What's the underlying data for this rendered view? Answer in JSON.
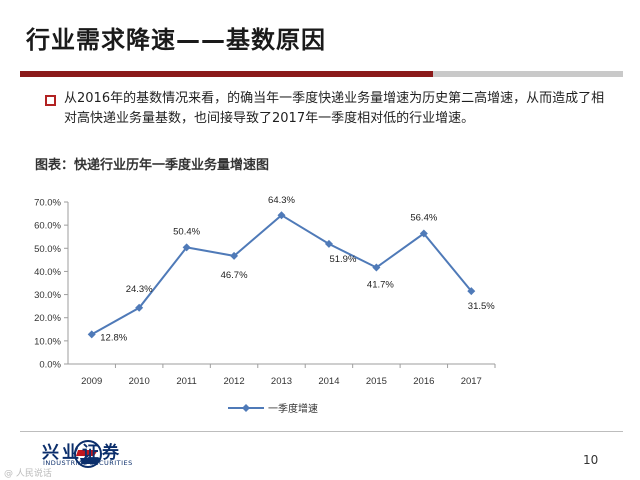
{
  "slide": {
    "title": "行业需求降速——基数原因",
    "bullet": "从2016年的基数情况来看，的确当年一季度快递业务量增速为历史第二高增速，从而造成了相对高快递业务量基数，也间接导致了2017年一季度相对低的行业增速。",
    "chart_caption": "图表：快递行业历年一季度业务量增速图",
    "page_number": "10",
    "logo_text": "兴业证券",
    "logo_sub": "INDUSTRIAL SECURITIES",
    "watermark": "@ 人民说话"
  },
  "colors": {
    "accent_red": "#8b1a1a",
    "line": "#4f7ab8",
    "marker": "#4f7ab8"
  },
  "chart_data": {
    "type": "line",
    "title": "图表：快递行业历年一季度业务量增速图",
    "categories": [
      "2009",
      "2010",
      "2011",
      "2012",
      "2013",
      "2014",
      "2015",
      "2016",
      "2017"
    ],
    "series": [
      {
        "name": "一季度增速",
        "values": [
          12.8,
          24.3,
          50.4,
          46.7,
          64.3,
          51.9,
          41.7,
          56.4,
          31.5
        ]
      }
    ],
    "data_labels": [
      "12.8%",
      "24.3%",
      "50.4%",
      "46.7%",
      "64.3%",
      "51.9%",
      "41.7%",
      "56.4%",
      "31.5%"
    ],
    "y_ticks": [
      "0.0%",
      "10.0%",
      "20.0%",
      "30.0%",
      "40.0%",
      "50.0%",
      "60.0%",
      "70.0%"
    ],
    "ylim": [
      0,
      70
    ],
    "legend_position": "bottom",
    "grid": false
  }
}
